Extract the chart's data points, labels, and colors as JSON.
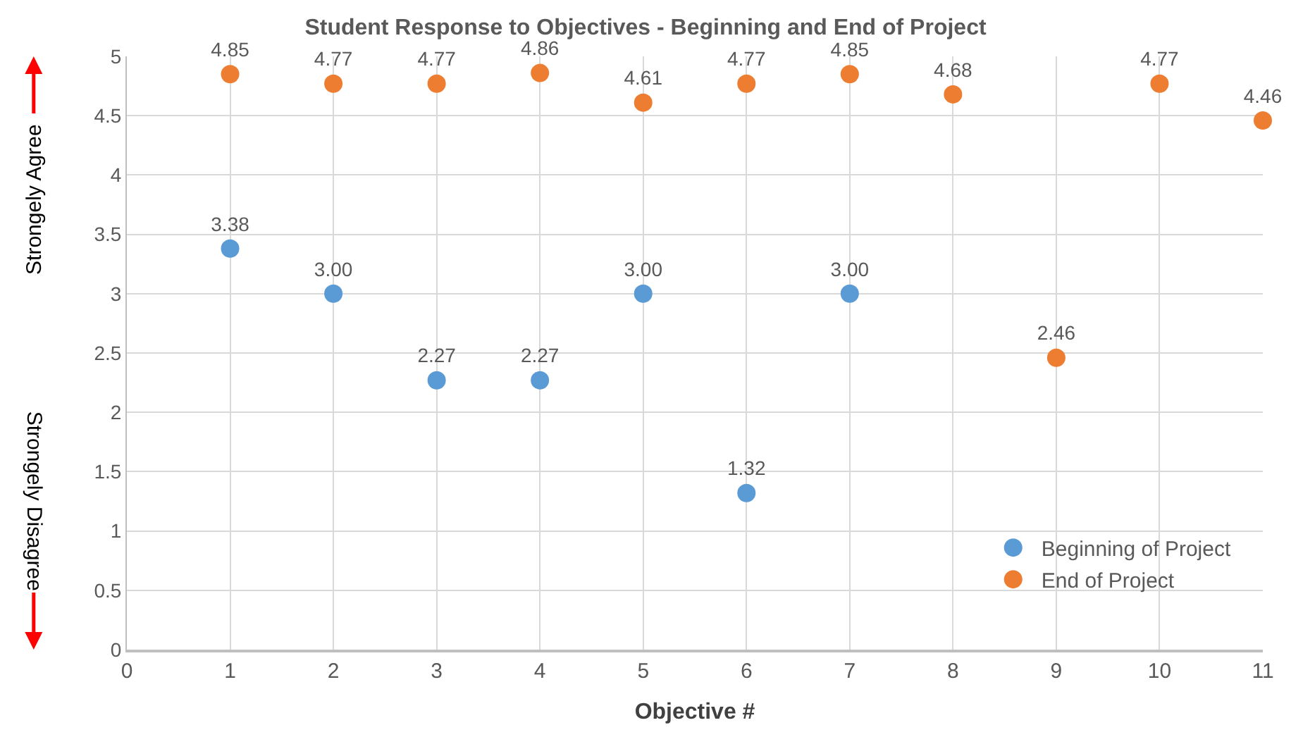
{
  "chart_data": {
    "type": "scatter",
    "title": "Student Response to Objectives - Beginning and End of Project",
    "xlabel": "Objective #",
    "annotations": [
      "Strongely Agree",
      "Strongely Disagree"
    ],
    "series": [
      {
        "name": "Beginning of Project",
        "color": "#5b9bd5",
        "x": [
          1,
          2,
          3,
          4,
          5,
          6,
          7
        ],
        "values": [
          3.38,
          3.0,
          2.27,
          2.27,
          3.0,
          1.32,
          3.0
        ],
        "value_labels": [
          "3.38",
          "3.00",
          "2.27",
          "2.27",
          "3.00",
          "1.32",
          "3.00"
        ]
      },
      {
        "name": "End of Project",
        "color": "#ed7d31",
        "x": [
          1,
          2,
          3,
          4,
          5,
          6,
          7,
          8,
          9,
          10,
          11
        ],
        "values": [
          4.85,
          4.77,
          4.77,
          4.86,
          4.61,
          4.77,
          4.85,
          4.68,
          2.46,
          4.77,
          4.46
        ],
        "value_labels": [
          "4.85",
          "4.77",
          "4.77",
          "4.86",
          "4.61",
          "4.77",
          "4.85",
          "4.68",
          "2.46",
          "4.77",
          "4.46"
        ]
      }
    ],
    "xlim": [
      0,
      11
    ],
    "xticks": [
      0,
      1,
      2,
      3,
      4,
      5,
      6,
      7,
      8,
      9,
      10,
      11
    ],
    "ylim": [
      0,
      5
    ],
    "yticks": [
      0,
      0.5,
      1,
      1.5,
      2,
      2.5,
      3,
      3.5,
      4,
      4.5,
      5
    ],
    "grid": true,
    "legend": "bottom right",
    "marker": "circle"
  }
}
